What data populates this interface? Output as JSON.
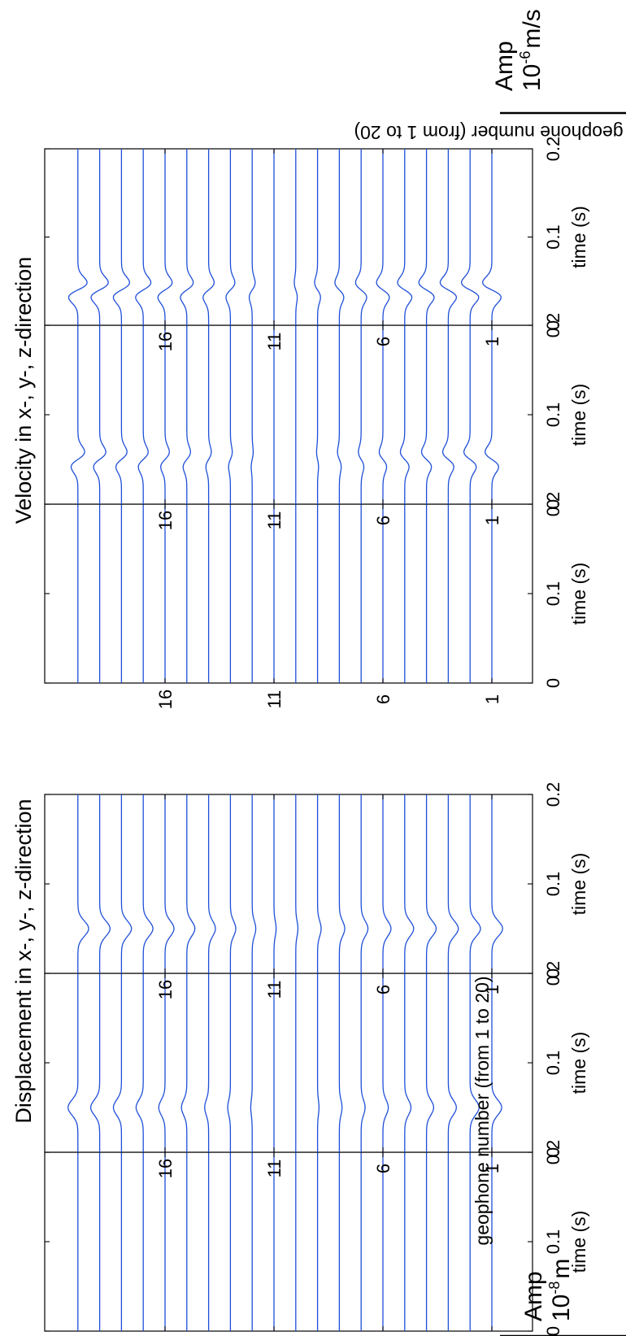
{
  "figure": {
    "title_left": "Displacement in x-, y-, z-direction",
    "title_right": "Velocity in x-, y-, z-direction",
    "ylabel": "geophone number (from 1 to 20)",
    "xlabel": "time (s)",
    "amp_left": {
      "word": "Amp",
      "base": "10",
      "exp": "-8",
      "unit": "m"
    },
    "amp_right": {
      "word": "Amp",
      "base": "10",
      "exp": "-6",
      "unit": "m/s"
    }
  },
  "chart_data": [
    {
      "type": "line",
      "quantity": "Displacement",
      "component": "x",
      "xlabel": "time (s)",
      "ylabel": "geophone number (from 1 to 20)",
      "xlim": [
        0,
        0.2
      ],
      "x_ticks": [
        0,
        0.1,
        0.2
      ],
      "ylim": [
        0,
        20
      ],
      "y_ticks": [
        1,
        6,
        11,
        16
      ],
      "grid": false,
      "pulse": "none",
      "pulse_time": 0.05,
      "pulse_width": 0.012,
      "geophones": [
        1,
        2,
        3,
        4,
        5,
        6,
        7,
        8,
        9,
        10,
        11,
        12,
        13,
        14,
        15,
        16,
        17,
        18,
        19,
        20
      ],
      "amplitudes": [
        0,
        0,
        0,
        0,
        0,
        0,
        0,
        0,
        0,
        0,
        0,
        0,
        0,
        0,
        0,
        0,
        0,
        0,
        0,
        0
      ]
    },
    {
      "type": "line",
      "quantity": "Displacement",
      "component": "y",
      "xlabel": "time (s)",
      "ylabel": "",
      "xlim": [
        0,
        0.2
      ],
      "x_ticks": [
        0,
        0.1,
        0.2
      ],
      "ylim": [
        0,
        20
      ],
      "y_ticks": [
        1,
        6,
        11,
        16
      ],
      "grid": false,
      "pulse": "gaussian",
      "pulse_time": 0.05,
      "pulse_width": 0.012,
      "geophones": [
        1,
        2,
        3,
        4,
        5,
        6,
        7,
        8,
        9,
        10,
        11,
        12,
        13,
        14,
        15,
        16,
        17,
        18,
        19,
        20
      ],
      "amplitudes": [
        0.55,
        0.5,
        0.45,
        0.4,
        0.35,
        0.3,
        0.22,
        0.15,
        0.08,
        0,
        0,
        -0.08,
        -0.15,
        -0.22,
        -0.3,
        -0.35,
        -0.4,
        -0.45,
        -0.5,
        -0.55
      ]
    },
    {
      "type": "line",
      "quantity": "Displacement",
      "component": "z",
      "xlabel": "time (s)",
      "ylabel": "",
      "xlim": [
        0,
        0.2
      ],
      "x_ticks": [
        0,
        0.1,
        0.2
      ],
      "ylim": [
        0,
        20
      ],
      "y_ticks": [
        1,
        6,
        11,
        16
      ],
      "grid": false,
      "pulse": "gaussian",
      "pulse_time": 0.05,
      "pulse_width": 0.012,
      "geophones": [
        1,
        2,
        3,
        4,
        5,
        6,
        7,
        8,
        9,
        10,
        11,
        12,
        13,
        14,
        15,
        16,
        17,
        18,
        19,
        20
      ],
      "amplitudes": [
        0.6,
        0.58,
        0.56,
        0.54,
        0.5,
        0.45,
        0.38,
        0.3,
        0.2,
        0.12,
        0.12,
        0.2,
        0.3,
        0.38,
        0.45,
        0.5,
        0.54,
        0.56,
        0.58,
        0.6
      ]
    },
    {
      "type": "line",
      "quantity": "Velocity",
      "component": "x",
      "xlabel": "time (s)",
      "ylabel": "",
      "xlim": [
        0,
        0.2
      ],
      "x_ticks": [
        0,
        0.1,
        0.2
      ],
      "ylim": [
        0,
        20
      ],
      "y_ticks": [
        1,
        6,
        11,
        16
      ],
      "grid": false,
      "pulse": "none",
      "pulse_time": 0.05,
      "pulse_width": 0.012,
      "geophones": [
        1,
        2,
        3,
        4,
        5,
        6,
        7,
        8,
        9,
        10,
        11,
        12,
        13,
        14,
        15,
        16,
        17,
        18,
        19,
        20
      ],
      "amplitudes": [
        0,
        0,
        0,
        0,
        0,
        0,
        0,
        0,
        0,
        0,
        0,
        0,
        0,
        0,
        0,
        0,
        0,
        0,
        0,
        0
      ]
    },
    {
      "type": "line",
      "quantity": "Velocity",
      "component": "y",
      "xlabel": "time (s)",
      "ylabel": "",
      "xlim": [
        0,
        0.2
      ],
      "x_ticks": [
        0,
        0.1,
        0.2
      ],
      "ylim": [
        0,
        20
      ],
      "y_ticks": [
        1,
        6,
        11,
        16
      ],
      "grid": false,
      "pulse": "derivative",
      "pulse_time": 0.05,
      "pulse_width": 0.012,
      "geophones": [
        1,
        2,
        3,
        4,
        5,
        6,
        7,
        8,
        9,
        10,
        11,
        12,
        13,
        14,
        15,
        16,
        17,
        18,
        19,
        20
      ],
      "amplitudes": [
        0.55,
        0.5,
        0.45,
        0.4,
        0.35,
        0.3,
        0.22,
        0.15,
        0.08,
        0,
        0,
        -0.08,
        -0.15,
        -0.22,
        -0.3,
        -0.35,
        -0.4,
        -0.45,
        -0.5,
        -0.55
      ]
    },
    {
      "type": "line",
      "quantity": "Velocity",
      "component": "z",
      "xlabel": "time (s)",
      "ylabel": "geophone number (from 1 to 20)",
      "xlim": [
        0,
        0.2
      ],
      "x_ticks": [
        0,
        0.1,
        0.2
      ],
      "ylim": [
        0,
        20
      ],
      "y_ticks": [
        1,
        6,
        11,
        16
      ],
      "grid": false,
      "pulse": "derivative",
      "pulse_time": 0.04,
      "pulse_width": 0.012,
      "geophones": [
        1,
        2,
        3,
        4,
        5,
        6,
        7,
        8,
        9,
        10,
        11,
        12,
        13,
        14,
        15,
        16,
        17,
        18,
        19,
        20
      ],
      "amplitudes": [
        0.75,
        0.7,
        0.66,
        0.62,
        0.58,
        0.52,
        0.45,
        0.36,
        0.24,
        0.12,
        0,
        -0.24,
        -0.36,
        -0.45,
        -0.52,
        -0.58,
        -0.62,
        -0.66,
        -0.7,
        -0.75
      ]
    }
  ]
}
